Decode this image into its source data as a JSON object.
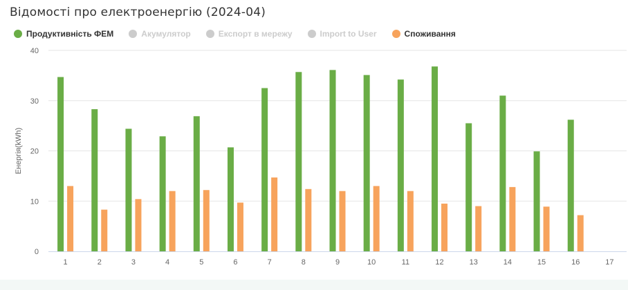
{
  "title": "Відомості про електроенергію (2024-04)",
  "legend": [
    {
      "label": "Продуктивність ФЕМ",
      "color": "#6aad46",
      "active": true
    },
    {
      "label": "Акумулятор",
      "color": "#cccccc",
      "active": false
    },
    {
      "label": "Експорт в мережу",
      "color": "#cccccc",
      "active": false
    },
    {
      "label": "Import to User",
      "color": "#cccccc",
      "active": false
    },
    {
      "label": "Споживання",
      "color": "#f7a35c",
      "active": true
    }
  ],
  "chart_data": {
    "type": "bar",
    "ylabel": "Енергія(kWh)",
    "ylim": [
      0,
      40
    ],
    "yticks": [
      0,
      10,
      20,
      30,
      40
    ],
    "grid": true,
    "legend_position": "top-left",
    "categories": [
      "1",
      "2",
      "3",
      "4",
      "5",
      "6",
      "7",
      "8",
      "9",
      "10",
      "11",
      "12",
      "13",
      "14",
      "15",
      "16",
      "17"
    ],
    "series": [
      {
        "name": "Продуктивність ФЕМ",
        "color": "#6aad46",
        "values": [
          34.7,
          28.3,
          24.4,
          22.9,
          26.9,
          20.7,
          32.5,
          35.7,
          36.1,
          35.1,
          34.2,
          36.8,
          25.5,
          31.0,
          19.9,
          26.2,
          null
        ]
      },
      {
        "name": "Споживання",
        "color": "#f7a35c",
        "values": [
          13.0,
          8.3,
          10.4,
          12.0,
          12.2,
          9.7,
          14.7,
          12.4,
          12.0,
          13.0,
          12.0,
          9.5,
          9.0,
          12.8,
          8.9,
          7.2,
          null
        ]
      }
    ]
  }
}
